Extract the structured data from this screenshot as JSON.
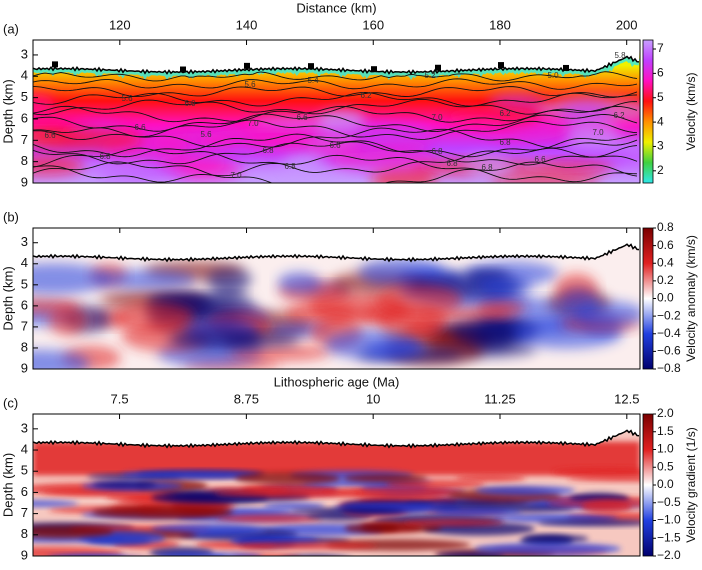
{
  "chart_data": [
    {
      "type": "heatmap",
      "panel_label": "(a)",
      "xlabel": "Distance (km)",
      "ylabel": "Depth (km)",
      "xlim": [
        106.3,
        202.1
      ],
      "xticks": [
        120,
        140,
        160,
        180,
        200
      ],
      "xtick_labels": true,
      "ylim": [
        2.3,
        9
      ],
      "yticks": [
        3,
        4,
        5,
        6,
        7,
        8,
        9
      ],
      "y_inverted": true,
      "colorbar": {
        "label": "Velocity (km/s)",
        "lim": [
          1.5,
          7.37
        ],
        "ticks": [
          2,
          3,
          4,
          5,
          6,
          7
        ],
        "colormap": [
          "#30e8e8",
          "#40d040",
          "#f0f000",
          "#ff9000",
          "#ff1010",
          "#ff10c0",
          "#c040ff",
          "#c8a0ff"
        ]
      },
      "contour_labels": [
        "5.8",
        "5.0",
        "5.2",
        "5.4",
        "5.6",
        "5.6",
        "6.0",
        "6.2",
        "6.6",
        "7.0",
        "7.0",
        "6.2",
        "6.2",
        "7.0",
        "6.6",
        "6.6",
        "6.8",
        "5.6",
        "6.8",
        "6.6",
        "6.8",
        "6.8",
        "6.8",
        "6.6",
        "6.8",
        "6.8",
        "7.0"
      ]
    },
    {
      "type": "heatmap",
      "panel_label": "(b)",
      "ylabel": "Depth (km)",
      "xlim": [
        106.3,
        202.1
      ],
      "xticks": [
        120,
        140,
        160,
        180,
        200
      ],
      "xtick_labels": false,
      "ylim": [
        2.3,
        9
      ],
      "yticks": [
        3,
        4,
        5,
        6,
        7,
        8,
        9
      ],
      "y_inverted": true,
      "colorbar": {
        "label": "Velocity anomaly (km/s)",
        "lim": [
          -0.8,
          0.8
        ],
        "ticks": [
          0.8,
          0.6,
          0.4,
          0.2,
          {
            "value": 0,
            "label": "0.0"
          },
          {
            "value": -0.2,
            "label": "−0.2"
          },
          {
            "value": -0.4,
            "label": "−0.4"
          },
          {
            "value": -0.6,
            "label": "−0.6"
          },
          {
            "value": -0.8,
            "label": "−0.8"
          }
        ],
        "colormap": [
          "#00006e",
          "#2040e0",
          "#ffffff",
          "#e02020",
          "#7a0000"
        ]
      }
    },
    {
      "type": "heatmap",
      "panel_label": "(c)",
      "xlabel": "Lithospheric age (Ma)",
      "ylabel": "Depth (km)",
      "xlim": [
        6.647,
        12.63
      ],
      "xticks": [
        7.5,
        8.75,
        10,
        11.25,
        12.5
      ],
      "xtick_labels": true,
      "ylim": [
        2.3,
        9
      ],
      "yticks": [
        3,
        4,
        5,
        6,
        7,
        8,
        9
      ],
      "y_inverted": true,
      "colorbar": {
        "label": "Velocity gradient (1/s)",
        "lim": [
          -2,
          2
        ],
        "ticks": [
          {
            "value": 2,
            "label": "2.0"
          },
          1.5,
          {
            "value": 1,
            "label": "1.0"
          },
          0.5,
          {
            "value": 0,
            "label": "0.0"
          },
          {
            "value": -0.5,
            "label": "−0.5"
          },
          {
            "value": -1,
            "label": "−1.0"
          },
          {
            "value": -1.5,
            "label": "−1.5"
          },
          {
            "value": -2,
            "label": "−2.0"
          }
        ],
        "colormap": [
          "#00006e",
          "#2040e0",
          "#ffffff",
          "#e02020",
          "#7a0000"
        ]
      }
    }
  ]
}
